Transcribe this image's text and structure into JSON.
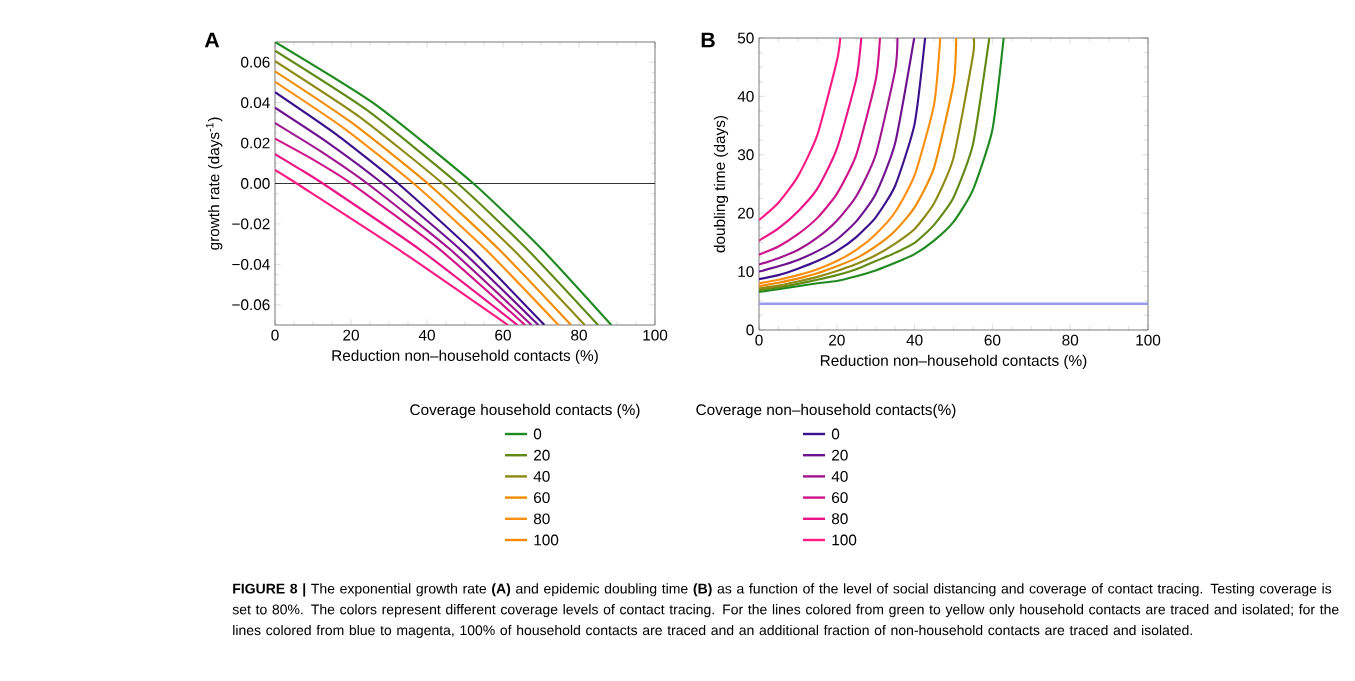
{
  "chart_data": [
    {
      "type": "line",
      "title": "A",
      "xlabel": "Reduction non–household contacts (%)",
      "ylabel": "growth rate (days$^{-1}$)",
      "xlim": [
        0,
        100
      ],
      "ylim": [
        -0.07,
        0.07
      ],
      "xticks": [
        0,
        20,
        40,
        60,
        80,
        100
      ],
      "yticks": [
        {
          "value": -0.06,
          "label": "−0.06"
        },
        {
          "value": -0.04,
          "label": "−0.04"
        },
        {
          "value": -0.02,
          "label": "−0.02"
        },
        {
          "value": 0,
          "label": "0.00"
        },
        0.02,
        0.04,
        0.06
      ],
      "legend": "bottom",
      "legend_title": "Coverage household contacts (%)",
      "marker": "none",
      "line_style": "solid",
      "ref_lines": [
        {
          "axis": "y",
          "value": 0,
          "color": "#000000"
        }
      ],
      "series": [
        {
          "name": "0",
          "color": "#1f8a1f",
          "x": [
            0,
            26.1,
            52.2,
            70.35,
            88.5
          ],
          "values": [
            0.07,
            0.0395,
            0,
            -0.0328,
            -0.07
          ]
        },
        {
          "name": "20",
          "color": "#5f8a14",
          "x": [
            0,
            24.05,
            48.1,
            66.55,
            85.0
          ],
          "values": [
            0.0657,
            0.0365,
            0,
            -0.0329,
            -0.07
          ]
        },
        {
          "name": "40",
          "color": "#8f8a14",
          "x": [
            0,
            22.05,
            44.1,
            62.8,
            81.5
          ],
          "values": [
            0.0605,
            0.0332,
            0,
            -0.0329,
            -0.07
          ]
        },
        {
          "name": "60",
          "color": "#f08c00",
          "x": [
            0,
            20.1,
            40.2,
            59.05,
            77.9
          ],
          "values": [
            0.0555,
            0.0302,
            0,
            -0.0328,
            -0.07
          ]
        },
        {
          "name": "80",
          "color": "#ff8f10",
          "x": [
            0,
            18.25,
            36.5,
            55.55,
            74.6
          ],
          "values": [
            0.0503,
            0.0272,
            0,
            -0.0328,
            -0.07
          ]
        },
        {
          "name": "100",
          "color": "#ff8a00",
          "values": [
            null
          ]
        },
        {
          "color": "#3c0f8c",
          "x": [
            0,
            16.2,
            32.4,
            51.65,
            70.9
          ],
          "values": [
            0.0452,
            0.0242,
            0,
            -0.0328,
            -0.07
          ]
        },
        {
          "color": "#6e1290",
          "x": [
            0,
            14.15,
            28.3,
            48.8,
            69.3
          ],
          "values": [
            0.0375,
            0.0199,
            0,
            -0.0327,
            -0.07
          ]
        },
        {
          "color": "#a0148f",
          "x": [
            0,
            12.15,
            24.3,
            45.9,
            67.5
          ],
          "values": [
            0.0299,
            0.0158,
            0,
            -0.0323,
            -0.07
          ]
        },
        {
          "color": "#d0148a",
          "x": [
            0,
            10.05,
            20.1,
            42.95,
            65.8
          ],
          "values": [
            0.0222,
            0.0118,
            0,
            -0.032,
            -0.07
          ]
        },
        {
          "color": "#ec1387",
          "x": [
            0,
            6.3,
            12.6,
            38.2,
            63.8
          ],
          "values": [
            0.0145,
            0.0074,
            0,
            -0.0328,
            -0.07
          ]
        },
        {
          "color": "#ff1a84",
          "x": [
            0,
            2.85,
            5.7,
            33.5,
            61.3
          ],
          "values": [
            0.0067,
            0.0034,
            0,
            -0.0339,
            -0.07
          ]
        }
      ],
      "annotations": [
        "**FIGURE 8 |** The exponential growth rate **(A)** and epidemic doubling time **(B)** as a function of the level of social distancing and coverage of contact tracing. Testing coverage is set to 80%. The colors represent different coverage levels of contact tracing. For the lines colored from green to yellow only household contacts are traced and isolated; for the lines colored from blue to magenta, 100% of household contacts are traced and an additional fraction of non-household contacts are traced and isolated."
      ]
    },
    {
      "type": "line",
      "title": "B",
      "xlabel": "Reduction non–household contacts (%)",
      "ylabel": "doubling time (days)",
      "xlim": [
        0,
        100
      ],
      "ylim": [
        0,
        50
      ],
      "xticks": [
        0,
        20,
        40,
        60,
        80,
        100
      ],
      "yticks": [
        0,
        10,
        20,
        30,
        40,
        50
      ],
      "legend": "bottom",
      "legend_title": "Coverage non–household contacts(%)",
      "marker": "none",
      "line_style": "solid",
      "ref_lines": [
        {
          "axis": "y",
          "value": 4.5,
          "color": "#9999ee"
        }
      ],
      "series": [
        {
          "color": "#1f8a1f",
          "x": [
            0,
            5,
            10,
            15,
            20,
            25,
            30,
            35,
            40,
            45,
            50,
            55,
            60,
            62.9
          ],
          "values": [
            6.5,
            7.0,
            7.5,
            8.0,
            8.4,
            9.2,
            10.2,
            11.5,
            13.0,
            15.3,
            18.5,
            24.0,
            34.3,
            50
          ]
        },
        {
          "color": "#5f8a14",
          "x": [
            0,
            5,
            10,
            15,
            20,
            25,
            30,
            35,
            40,
            45,
            50,
            55,
            59.2
          ],
          "values": [
            6.8,
            7.3,
            7.9,
            8.6,
            9.4,
            10.4,
            11.8,
            13.2,
            14.9,
            18.0,
            22.7,
            31.8,
            50
          ]
        },
        {
          "color": "#8f8a14",
          "x": [
            0,
            5,
            10,
            15,
            20,
            25,
            30,
            35,
            40,
            45,
            50,
            55,
            55.2
          ],
          "values": [
            7.1,
            7.6,
            8.3,
            9.1,
            10.1,
            11.3,
            12.8,
            14.8,
            17.3,
            21.7,
            29.5,
            47.0,
            50
          ]
        },
        {
          "color": "#f08c00",
          "x": [
            0,
            5,
            10,
            15,
            20,
            25,
            30,
            35,
            40,
            45,
            50,
            50.7
          ],
          "values": [
            7.5,
            8.1,
            8.8,
            9.7,
            10.9,
            12.3,
            14.3,
            17.0,
            21.0,
            27.8,
            42.2,
            50
          ]
        },
        {
          "color": "#ff8f10",
          "x": [
            0,
            5,
            10,
            15,
            20,
            25,
            30,
            35,
            40,
            45,
            46.6
          ],
          "values": [
            8.0,
            8.6,
            9.4,
            10.4,
            11.8,
            13.7,
            16.4,
            20.2,
            26.5,
            38.6,
            50
          ]
        },
        {
          "name": "0",
          "color": "#3c0f8c",
          "x": [
            0,
            5,
            10,
            15,
            20,
            25,
            30,
            35,
            40,
            42.7
          ],
          "values": [
            8.7,
            9.4,
            10.5,
            11.8,
            13.5,
            15.9,
            19.3,
            24.7,
            35.3,
            50
          ]
        },
        {
          "name": "20",
          "color": "#6e1290",
          "x": [
            0,
            5,
            10,
            15,
            20,
            25,
            30,
            35,
            39.9
          ],
          "values": [
            10.0,
            10.9,
            12.0,
            13.5,
            15.5,
            18.6,
            23.3,
            32.0,
            50
          ]
        },
        {
          "name": "40",
          "color": "#a0148f",
          "x": [
            0,
            5,
            10,
            15,
            20,
            25,
            30,
            35,
            35.6
          ],
          "values": [
            11.2,
            12.3,
            13.7,
            15.8,
            18.7,
            22.9,
            30.0,
            44.5,
            50
          ]
        },
        {
          "name": "60",
          "color": "#d0148a",
          "x": [
            0,
            5,
            10,
            15,
            20,
            25,
            30,
            31.1
          ],
          "values": [
            12.9,
            14.3,
            16.4,
            19.2,
            23.3,
            30.0,
            42.8,
            50
          ]
        },
        {
          "name": "80",
          "color": "#ec1387",
          "x": [
            0,
            5,
            10,
            15,
            20,
            25,
            26.3
          ],
          "values": [
            15.3,
            17.4,
            20.3,
            24.2,
            31.0,
            43.0,
            50
          ]
        },
        {
          "name": "100",
          "color": "#ff1a84",
          "x": [
            0,
            5,
            10,
            15,
            20,
            20.9
          ],
          "values": [
            18.8,
            21.8,
            26.3,
            33.4,
            46.0,
            50
          ]
        }
      ]
    }
  ]
}
